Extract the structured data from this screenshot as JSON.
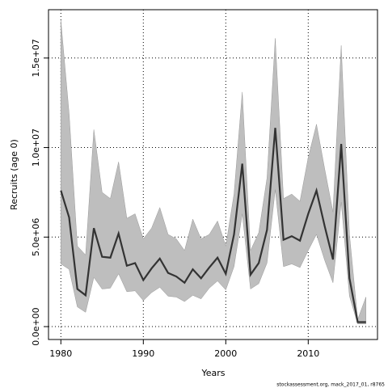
{
  "chart_data": {
    "type": "line",
    "xlabel": "Years",
    "ylabel": "Recruits (age 0)",
    "footnote": "stockassessment.org, mack_2017_01, r8765",
    "x": [
      1980,
      1981,
      1982,
      1983,
      1984,
      1985,
      1986,
      1987,
      1988,
      1989,
      1990,
      1991,
      1992,
      1993,
      1994,
      1995,
      1996,
      1997,
      1998,
      1999,
      2000,
      2001,
      2002,
      2003,
      2004,
      2005,
      2006,
      2007,
      2008,
      2009,
      2010,
      2011,
      2012,
      2013,
      2014,
      2015,
      2016,
      2017
    ],
    "series": [
      {
        "color": "#333333",
        "values": [
          7600000.0,
          6100000.0,
          2100000.0,
          1750000.0,
          5500000.0,
          3900000.0,
          3850000.0,
          5200000.0,
          3400000.0,
          3550000.0,
          2600000.0,
          3250000.0,
          3800000.0,
          3000000.0,
          2800000.0,
          2450000.0,
          3200000.0,
          2700000.0,
          3300000.0,
          3850000.0,
          2950000.0,
          5150000.0,
          9100000.0,
          2900000.0,
          3550000.0,
          5400000.0,
          11100000.0,
          4850000.0,
          5050000.0,
          4800000.0,
          6300000.0,
          7600000.0,
          5600000.0,
          3750000.0,
          10200000.0,
          2700000.0,
          250000.0,
          250000.0
        ]
      }
    ],
    "band": {
      "color": "#bebebe",
      "upper": [
        17100000.0,
        11900000.0,
        4500000.0,
        4000000.0,
        11000000.0,
        7500000.0,
        7150000.0,
        9200000.0,
        6050000.0,
        6300000.0,
        4900000.0,
        5500000.0,
        6650000.0,
        5150000.0,
        4900000.0,
        4250000.0,
        6000000.0,
        4900000.0,
        5150000.0,
        5900000.0,
        4500000.0,
        7400000.0,
        13100000.0,
        4250000.0,
        5250000.0,
        8300000.0,
        16100000.0,
        7150000.0,
        7400000.0,
        7000000.0,
        9450000.0,
        11300000.0,
        8800000.0,
        6400000.0,
        15700000.0,
        5150000.0,
        400000.0,
        1650000.0
      ],
      "lower": [
        3500000.0,
        3200000.0,
        1100000.0,
        800000.0,
        2750000.0,
        2100000.0,
        2150000.0,
        2950000.0,
        1950000.0,
        2000000.0,
        1450000.0,
        1900000.0,
        2200000.0,
        1700000.0,
        1650000.0,
        1400000.0,
        1750000.0,
        1550000.0,
        2150000.0,
        2550000.0,
        2050000.0,
        3350000.0,
        6300000.0,
        2100000.0,
        2400000.0,
        3550000.0,
        7650000.0,
        3350000.0,
        3500000.0,
        3300000.0,
        4250000.0,
        5150000.0,
        3700000.0,
        2450000.0,
        6950000.0,
        1700000.0,
        150000.0,
        150000.0
      ]
    },
    "xlim": [
      1978.5,
      2018.4
    ],
    "xticks": [
      1980,
      1990,
      2000,
      2010
    ],
    "ylim": [
      -720000,
      17700000
    ],
    "yticks": [
      {
        "value": 0,
        "label": "0.0e+00"
      },
      {
        "value": 5000000,
        "label": "5.0e+06"
      },
      {
        "value": 10000000,
        "label": "1.0e+07"
      },
      {
        "value": 15000000,
        "label": "1.5e+07"
      }
    ],
    "grid": true
  }
}
